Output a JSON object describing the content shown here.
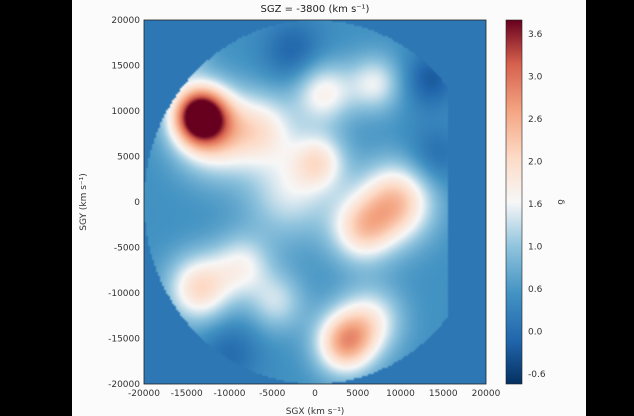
{
  "chart_data": {
    "type": "heatmap",
    "title": "SGZ = -3800 (km s⁻¹)",
    "xlabel": "SGX (km s⁻¹)",
    "ylabel": "SGY (km s⁻¹)",
    "colorbar_label": "δ",
    "x_ticks": [
      "-20000",
      "-15000",
      "-10000",
      "-5000",
      "0",
      "5000",
      "10000",
      "15000",
      "20000"
    ],
    "y_ticks": [
      "20000",
      "15000",
      "10000",
      "5000",
      "0",
      "-5000",
      "-10000",
      "-15000",
      "-20000"
    ],
    "colorbar_ticks": [
      "3.6",
      "3.0",
      "2.6",
      "2.0",
      "1.6",
      "1.0",
      "0.6",
      "0.0",
      "-0.6"
    ],
    "xlim": [
      -20000,
      20000
    ],
    "ylim": [
      -20000,
      20000
    ],
    "clim": [
      -0.8,
      3.9
    ],
    "colormap": "RdBu_r",
    "background_value": 0.0,
    "blobs": [
      {
        "x": -13500,
        "y": 9500,
        "amp": 3.7,
        "s": 2200
      },
      {
        "x": -11500,
        "y": 7500,
        "amp": 1.6,
        "s": 3200
      },
      {
        "x": -6000,
        "y": 8000,
        "amp": 1.2,
        "s": 2800
      },
      {
        "x": 1000,
        "y": 12000,
        "amp": 1.3,
        "s": 2400
      },
      {
        "x": 7000,
        "y": 13000,
        "amp": 1.1,
        "s": 2200
      },
      {
        "x": 9500,
        "y": 0,
        "amp": 2.0,
        "s": 3000
      },
      {
        "x": 5500,
        "y": -3000,
        "amp": 1.6,
        "s": 2600
      },
      {
        "x": -3000,
        "y": 1000,
        "amp": 1.0,
        "s": 3500
      },
      {
        "x": 500,
        "y": 4500,
        "amp": 1.3,
        "s": 2200
      },
      {
        "x": -13500,
        "y": -9500,
        "amp": 1.7,
        "s": 2600
      },
      {
        "x": -8500,
        "y": -7000,
        "amp": 1.1,
        "s": 2400
      },
      {
        "x": 3500,
        "y": -15500,
        "amp": 2.2,
        "s": 2400
      },
      {
        "x": 6500,
        "y": -13000,
        "amp": 1.2,
        "s": 2600
      },
      {
        "x": -4500,
        "y": -11000,
        "amp": 0.9,
        "s": 2300
      },
      {
        "x": -15500,
        "y": 16500,
        "amp": 0.7,
        "s": 2000
      },
      {
        "x": 13500,
        "y": 13500,
        "amp": -0.7,
        "s": 2200
      },
      {
        "x": 14000,
        "y": 5000,
        "amp": -0.5,
        "s": 2400
      },
      {
        "x": -10000,
        "y": -16500,
        "amp": -0.5,
        "s": 2600
      },
      {
        "x": -2500,
        "y": 16500,
        "amp": -0.6,
        "s": 2500
      }
    ],
    "survey_mask": {
      "center": [
        0,
        0
      ],
      "radius": 20000,
      "cut_x": 15500
    }
  }
}
